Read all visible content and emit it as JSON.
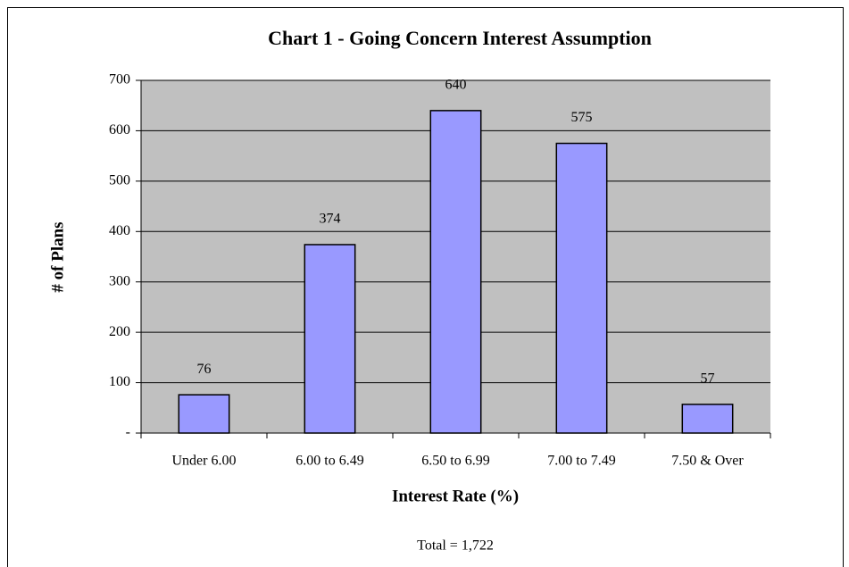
{
  "chart_data": {
    "type": "bar",
    "title": "Chart 1 - Going Concern Interest Assumption",
    "x_label": "Interest Rate (%)",
    "y_label": "# of Plans",
    "annotation": "Total = 1,722",
    "categories": [
      "Under 6.00",
      "6.00 to 6.49",
      "6.50 to 6.99",
      "7.00 to 7.49",
      "7.50 & Over"
    ],
    "values": [
      76,
      374,
      640,
      575,
      57
    ],
    "color": "#9999ff",
    "plot_background": "#c0c0c0",
    "ylim": [
      0,
      700
    ],
    "yticks": [
      {
        "value": 0,
        "label": "-"
      },
      100,
      200,
      300,
      400,
      500,
      600,
      700
    ],
    "grid": true
  }
}
